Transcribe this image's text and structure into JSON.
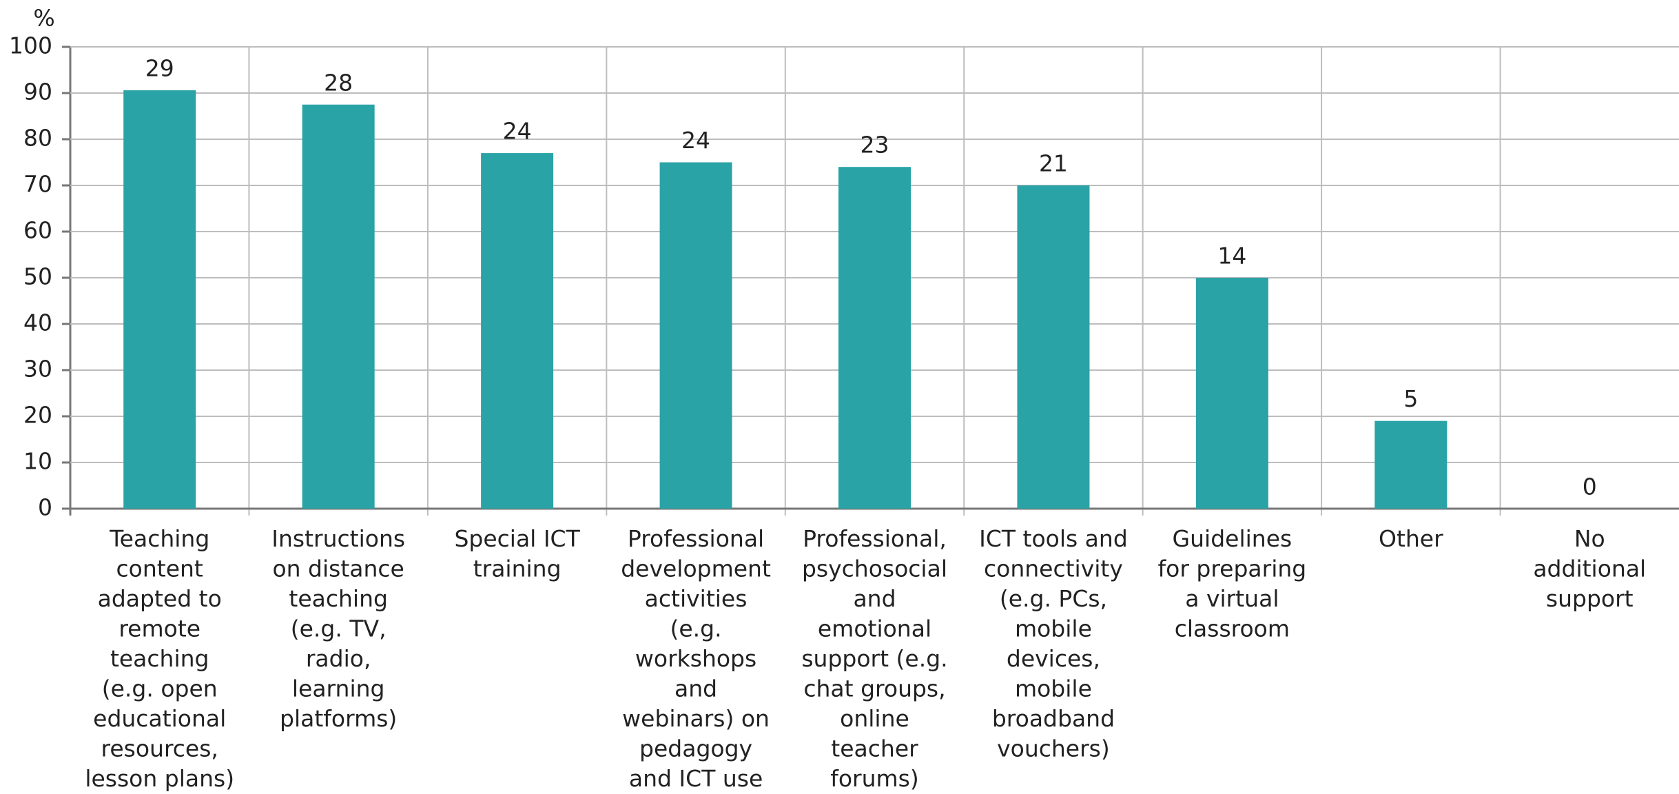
{
  "chart_data": {
    "type": "bar",
    "y_label": "%",
    "categories": [
      [
        "Teaching",
        "content",
        "adapted to",
        "remote",
        "teaching",
        "(e.g. open",
        "educational",
        "resources,",
        "lesson plans)"
      ],
      [
        "Instructions",
        "on distance",
        "teaching",
        "(e.g. TV,",
        "radio,",
        "learning",
        "platforms)"
      ],
      [
        "Special ICT",
        "training"
      ],
      [
        "Professional",
        "development",
        "activities",
        "(e.g.",
        "workshops",
        "and",
        "webinars) on",
        "pedagogy",
        "and ICT use"
      ],
      [
        "Professional,",
        "psychosocial",
        "and",
        "emotional",
        "support (e.g.",
        "chat groups,",
        "online",
        "teacher",
        "forums)"
      ],
      [
        "ICT tools and",
        "connectivity",
        "(e.g. PCs,",
        "mobile",
        "devices,",
        "mobile",
        "broadband",
        "vouchers)"
      ],
      [
        "Guidelines",
        "for preparing",
        "a virtual",
        "classroom"
      ],
      [
        "Other"
      ],
      [
        "No",
        "additional",
        "support"
      ]
    ],
    "values": [
      90.6,
      87.5,
      77,
      75,
      74,
      70,
      50,
      19,
      0
    ],
    "counts": [
      29,
      28,
      24,
      24,
      23,
      21,
      14,
      5,
      0
    ],
    "color": "#2aa3a6",
    "ylim": [
      0,
      100
    ],
    "yticks": [
      0,
      10,
      20,
      30,
      40,
      50,
      60,
      70,
      80,
      90,
      100
    ],
    "grid": true
  }
}
